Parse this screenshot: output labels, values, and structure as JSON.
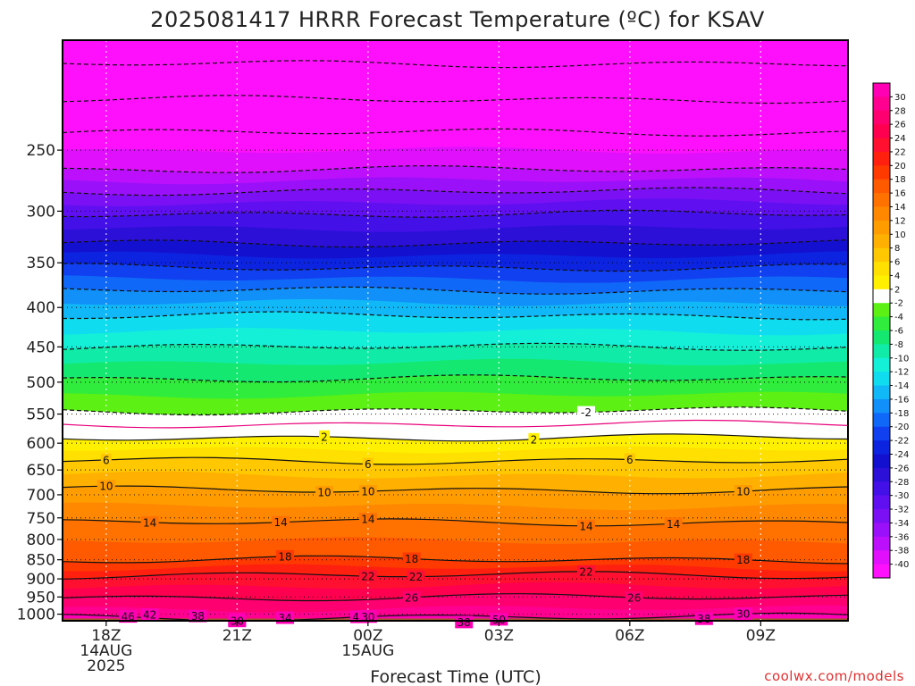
{
  "chart_data": {
    "type": "heatmap",
    "title": "2025081417 HRRR Forecast Temperature (ºC) for KSAV",
    "xlabel": "Forecast Time (UTC)",
    "credit": "coolwx.com/models",
    "x_ticks": [
      {
        "h": 1,
        "lines": [
          "18Z",
          "14AUG",
          "2025"
        ]
      },
      {
        "h": 4,
        "lines": [
          "21Z"
        ]
      },
      {
        "h": 7,
        "lines": [
          "00Z",
          "15AUG"
        ]
      },
      {
        "h": 10,
        "lines": [
          "03Z"
        ]
      },
      {
        "h": 13,
        "lines": [
          "06Z"
        ]
      },
      {
        "h": 16,
        "lines": [
          "09Z"
        ]
      }
    ],
    "xlim_hours": [
      0,
      18
    ],
    "y_scale": "log-pressure (hPa, inverted)",
    "ylim": [
      1020,
      180
    ],
    "y_ticks": [
      250,
      300,
      350,
      400,
      450,
      500,
      550,
      600,
      650,
      700,
      750,
      800,
      850,
      900,
      950,
      1000
    ],
    "surface_pressure": 1013,
    "temperature_profile": [
      {
        "p": 180,
        "t": -52
      },
      {
        "p": 200,
        "t": -49
      },
      {
        "p": 220,
        "t": -45
      },
      {
        "p": 240,
        "t": -41.5
      },
      {
        "p": 265,
        "t": -38
      },
      {
        "p": 285,
        "t": -33.5
      },
      {
        "p": 305,
        "t": -29.5
      },
      {
        "p": 330,
        "t": -26
      },
      {
        "p": 355,
        "t": -22
      },
      {
        "p": 380,
        "t": -18
      },
      {
        "p": 410,
        "t": -14
      },
      {
        "p": 450,
        "t": -10
      },
      {
        "p": 495,
        "t": -6
      },
      {
        "p": 545,
        "t": -2
      },
      {
        "p": 567,
        "t": 0
      },
      {
        "p": 590,
        "t": 2
      },
      {
        "p": 632,
        "t": 6
      },
      {
        "p": 690,
        "t": 10
      },
      {
        "p": 760,
        "t": 14
      },
      {
        "p": 850,
        "t": 18
      },
      {
        "p": 890,
        "t": 22
      },
      {
        "p": 1000,
        "t": 29
      },
      {
        "p": 1013,
        "t": 30.5
      }
    ],
    "contour_labels": [
      {
        "value": "50",
        "label_hours": [
          4,
          10
        ]
      },
      {
        "value": "46",
        "label_hours": [
          1.5,
          6.8
        ]
      },
      {
        "value": "42",
        "label_hours": [
          2
        ]
      },
      {
        "value": "38",
        "label_hours": [
          3.1,
          9.2,
          14.7
        ]
      },
      {
        "value": "34",
        "label_hours": [
          5.1,
          15.6
        ]
      },
      {
        "value": "30",
        "label_hours": [
          4,
          15.6
        ]
      },
      {
        "value": "26",
        "label_hours": [
          8,
          13.1
        ]
      },
      {
        "value": "22",
        "label_hours": [
          8.1
        ]
      },
      {
        "value": "18",
        "label_hours": [
          5.1
        ]
      },
      {
        "value": "14",
        "label_hours": [
          2,
          7,
          14
        ]
      },
      {
        "value": "10",
        "label_hours": [
          7,
          15.6
        ]
      },
      {
        "value": "6",
        "label_hours": [
          7
        ]
      },
      {
        "value": "-2",
        "label_hours": [
          12
        ]
      },
      {
        "value": "2",
        "label_hours": [
          6,
          10.8
        ]
      },
      {
        "value": "6",
        "label_hours": [
          1,
          13
        ]
      },
      {
        "value": "10",
        "label_hours": [
          1,
          6,
          15.6
        ]
      },
      {
        "value": "14",
        "label_hours": [
          5,
          12
        ]
      },
      {
        "value": "18",
        "label_hours": [
          8,
          15.6
        ]
      },
      {
        "value": "22",
        "label_hours": [
          7,
          12
        ]
      },
      {
        "value": "30",
        "label_hours": [
          7
        ]
      }
    ],
    "colorbar": {
      "labels": [
        "30",
        "28",
        "26",
        "24",
        "22",
        "20",
        "18",
        "16",
        "14",
        "12",
        "10",
        "8",
        "6",
        "4",
        "2",
        "-2",
        "-4",
        "-6",
        "-8",
        "-10",
        "-12",
        "-14",
        "-16",
        "-18",
        "-20",
        "-22",
        "-24",
        "-26",
        "-28",
        "-30",
        "-32",
        "-34",
        "-36",
        "-38",
        "-40"
      ],
      "colors": [
        "#ff00b4",
        "#ff0090",
        "#ff0070",
        "#ff0050",
        "#ff1030",
        "#ff2010",
        "#ff3a00",
        "#ff5a00",
        "#ff7200",
        "#ff8800",
        "#ff9c00",
        "#ffb000",
        "#ffc800",
        "#ffe000",
        "#fff000",
        "#ffffff",
        "#5cf014",
        "#30ec3c",
        "#14e870",
        "#10eca8",
        "#14f0d8",
        "#10dcf0",
        "#10b8f8",
        "#1090f8",
        "#1068f8",
        "#1040f0",
        "#0c24e0",
        "#1410d0",
        "#2c10d8",
        "#4410e8",
        "#6010f0",
        "#7c10f4",
        "#9a10f8",
        "#bc10fc",
        "#e010fc",
        "#ff10fc"
      ]
    }
  }
}
